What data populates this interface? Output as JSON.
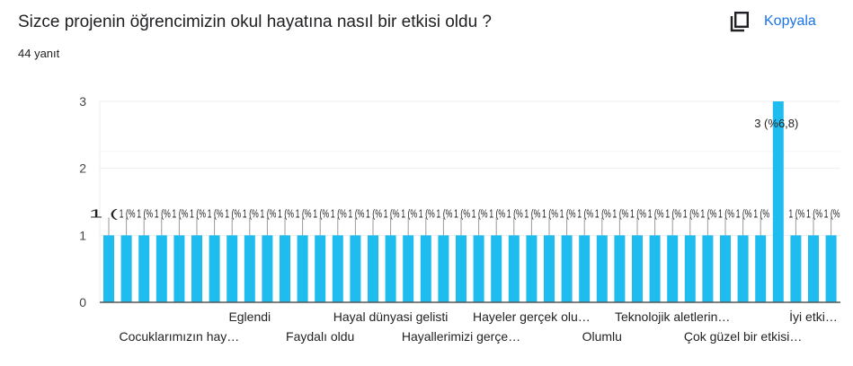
{
  "header": {
    "question": "Sizce projenin öğrencimizin okul hayatına nasıl bir etkisi oldu ?",
    "response_count": "44 yanıt",
    "copy_label": "Kopyala",
    "copy_icon": "copy-icon"
  },
  "colors": {
    "bar": "#1fbcf0",
    "accent": "#1a73e8"
  },
  "chart_data": {
    "type": "bar",
    "title": "",
    "xlabel": "",
    "ylabel": "",
    "ylim": [
      0,
      3
    ],
    "yticks": [
      0,
      1,
      2,
      3
    ],
    "grid": true,
    "categories": [
      "",
      "",
      "",
      "",
      "Cocuklarımızın hay…",
      "",
      "",
      "",
      "Eglendi",
      "",
      "",
      "",
      "Faydalı oldu",
      "",
      "",
      "",
      "Hayal dünyasi gelisti",
      "",
      "",
      "",
      "Hayallerimizi gerçe…",
      "",
      "",
      "",
      "Hayeler gerçek olu…",
      "",
      "",
      "",
      "Olumlu",
      "",
      "",
      "",
      "Teknolojik aletlerin…",
      "",
      "",
      "",
      "Çok güzel bir etkisi…",
      "",
      "",
      "",
      "İyi etki…",
      ""
    ],
    "values": [
      1,
      1,
      1,
      1,
      1,
      1,
      1,
      1,
      1,
      1,
      1,
      1,
      1,
      1,
      1,
      1,
      1,
      1,
      1,
      1,
      1,
      1,
      1,
      1,
      1,
      1,
      1,
      1,
      1,
      1,
      1,
      1,
      1,
      1,
      1,
      1,
      1,
      1,
      3,
      1,
      1,
      1
    ],
    "data_labels": [
      "1 (%2,3)",
      "1 (%2,3)",
      "1 (%2,3)",
      "1 (%2,3)",
      "1 (%2,3)",
      "1 (%2,3)",
      "1 (%2,3)",
      "1 (%2,3)",
      "1 (%2,3)",
      "1 (%2,3)",
      "1 (%2,3)",
      "1 (%2,3)",
      "1 (%2,3)",
      "1 (%2,3)",
      "1 (%2,3)",
      "1 (%2,3)",
      "1 (%2,3)",
      "1 (%2,3)",
      "1 (%2,3)",
      "1 (%2,3)",
      "1 (%2,3)",
      "1 (%2,3)",
      "1 (%2,3)",
      "1 (%2,3)",
      "1 (%2,3)",
      "1 (%2,3)",
      "1 (%2,3)",
      "1 (%2,3)",
      "1 (%2,3)",
      "1 (%2,3)",
      "1 (%2,3)",
      "1 (%2,3)",
      "1 (%2,3)",
      "1 (%2,3)",
      "1 (%2,3)",
      "1 (%2,3)",
      "1 (%2,3)",
      "1 (%2,3)",
      "3 (%6,8)",
      "1 (%2,3)",
      "1 (%2,3)",
      "1 (%2,3)"
    ]
  }
}
